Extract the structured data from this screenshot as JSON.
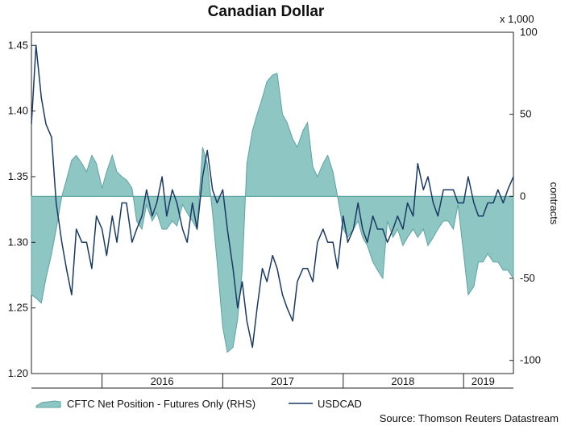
{
  "chart_data": {
    "type": "line",
    "title": "Canadian Dollar",
    "units_note": "x 1,000",
    "y2label": "contracts",
    "source": "Source: Thomson Reuters Datastream",
    "x_ticks": [
      "2016",
      "2017",
      "2018",
      "2019"
    ],
    "x_tick_dates": [
      "2016-07-01",
      "2017-07-01",
      "2018-07-01",
      "2019-03-01"
    ],
    "x_dividers": [
      "2016-01-01",
      "2017-01-01",
      "2018-01-01",
      "2019-01-01"
    ],
    "xlim": [
      "2015-06-01",
      "2019-06-01"
    ],
    "ylim_left": [
      1.2,
      1.46
    ],
    "yticks_left": [
      "1.20",
      "1.25",
      "1.30",
      "1.35",
      "1.40",
      "1.45"
    ],
    "ylim_right": [
      -108,
      100
    ],
    "yticks_right": [
      "-100",
      "-50",
      "0",
      "50",
      "100"
    ],
    "legend": [
      "CFTC Net Position - Futures Only (RHS)",
      "USDCAD"
    ],
    "colors": {
      "area": "#8ec6c4",
      "area_edge": "#5ea3a1",
      "line": "#1a3a64"
    },
    "series": [
      {
        "name": "CFTC Net Position - Futures Only (RHS)",
        "axis": "right",
        "style": "area",
        "x": [
          "2015-06-01",
          "2015-06-15",
          "2015-07-01",
          "2015-07-15",
          "2015-08-01",
          "2015-08-15",
          "2015-09-01",
          "2015-09-15",
          "2015-10-01",
          "2015-10-15",
          "2015-11-01",
          "2015-11-15",
          "2015-12-01",
          "2015-12-15",
          "2016-01-01",
          "2016-01-15",
          "2016-02-01",
          "2016-02-15",
          "2016-03-01",
          "2016-03-15",
          "2016-04-01",
          "2016-04-15",
          "2016-05-01",
          "2016-05-15",
          "2016-06-01",
          "2016-06-15",
          "2016-07-01",
          "2016-07-15",
          "2016-08-01",
          "2016-08-15",
          "2016-09-01",
          "2016-09-15",
          "2016-10-01",
          "2016-10-15",
          "2016-11-01",
          "2016-11-15",
          "2016-12-01",
          "2016-12-15",
          "2017-01-01",
          "2017-01-15",
          "2017-02-01",
          "2017-02-15",
          "2017-03-01",
          "2017-03-15",
          "2017-04-01",
          "2017-04-15",
          "2017-05-01",
          "2017-05-15",
          "2017-06-01",
          "2017-06-15",
          "2017-07-01",
          "2017-07-15",
          "2017-08-01",
          "2017-08-15",
          "2017-09-01",
          "2017-09-15",
          "2017-10-01",
          "2017-10-15",
          "2017-11-01",
          "2017-11-15",
          "2017-12-01",
          "2017-12-15",
          "2018-01-01",
          "2018-01-15",
          "2018-02-01",
          "2018-02-15",
          "2018-03-01",
          "2018-03-15",
          "2018-04-01",
          "2018-04-15",
          "2018-05-01",
          "2018-05-15",
          "2018-06-01",
          "2018-06-15",
          "2018-07-01",
          "2018-07-15",
          "2018-08-01",
          "2018-08-15",
          "2018-09-01",
          "2018-09-15",
          "2018-10-01",
          "2018-10-15",
          "2018-11-01",
          "2018-11-15",
          "2018-12-01",
          "2018-12-15",
          "2019-01-01",
          "2019-01-15",
          "2019-02-01",
          "2019-02-15",
          "2019-03-01",
          "2019-03-15",
          "2019-04-01",
          "2019-04-15",
          "2019-05-01",
          "2019-05-15",
          "2019-06-01"
        ],
        "values": [
          -60,
          -62,
          -65,
          -50,
          -35,
          -20,
          0,
          10,
          22,
          25,
          20,
          15,
          25,
          20,
          5,
          15,
          25,
          15,
          12,
          10,
          5,
          -15,
          -20,
          -5,
          -15,
          -10,
          -20,
          -20,
          -15,
          -18,
          -5,
          -10,
          -15,
          -20,
          30,
          20,
          -10,
          -40,
          -80,
          -95,
          -92,
          -75,
          -45,
          20,
          40,
          50,
          60,
          70,
          74,
          75,
          50,
          45,
          35,
          30,
          40,
          45,
          18,
          12,
          20,
          25,
          15,
          0,
          -20,
          -25,
          -20,
          -15,
          -25,
          -30,
          -40,
          -45,
          -50,
          -15,
          -25,
          -20,
          -30,
          -25,
          -20,
          -25,
          -20,
          -30,
          -25,
          -20,
          -15,
          -15,
          -20,
          -5,
          -35,
          -60,
          -55,
          -40,
          -40,
          -35,
          -40,
          -40,
          -45,
          -45,
          -50
        ]
      },
      {
        "name": "USDCAD",
        "axis": "left",
        "style": "line",
        "x": [
          "2015-06-01",
          "2015-06-15",
          "2015-07-01",
          "2015-07-15",
          "2015-08-01",
          "2015-08-15",
          "2015-09-01",
          "2015-09-15",
          "2015-10-01",
          "2015-10-15",
          "2015-11-01",
          "2015-11-15",
          "2015-12-01",
          "2015-12-15",
          "2016-01-01",
          "2016-01-15",
          "2016-02-01",
          "2016-02-15",
          "2016-03-01",
          "2016-03-15",
          "2016-04-01",
          "2016-04-15",
          "2016-05-01",
          "2016-05-15",
          "2016-06-01",
          "2016-06-15",
          "2016-07-01",
          "2016-07-15",
          "2016-08-01",
          "2016-08-15",
          "2016-09-01",
          "2016-09-15",
          "2016-10-01",
          "2016-10-15",
          "2016-11-01",
          "2016-11-15",
          "2016-12-01",
          "2016-12-15",
          "2017-01-01",
          "2017-01-15",
          "2017-02-01",
          "2017-02-15",
          "2017-03-01",
          "2017-03-15",
          "2017-04-01",
          "2017-04-15",
          "2017-05-01",
          "2017-05-15",
          "2017-06-01",
          "2017-06-15",
          "2017-07-01",
          "2017-07-15",
          "2017-08-01",
          "2017-08-15",
          "2017-09-01",
          "2017-09-15",
          "2017-10-01",
          "2017-10-15",
          "2017-11-01",
          "2017-11-15",
          "2017-12-01",
          "2017-12-15",
          "2018-01-01",
          "2018-01-15",
          "2018-02-01",
          "2018-02-15",
          "2018-03-01",
          "2018-03-15",
          "2018-04-01",
          "2018-04-15",
          "2018-05-01",
          "2018-05-15",
          "2018-06-01",
          "2018-06-15",
          "2018-07-01",
          "2018-07-15",
          "2018-08-01",
          "2018-08-15",
          "2018-09-01",
          "2018-09-15",
          "2018-10-01",
          "2018-10-15",
          "2018-11-01",
          "2018-11-15",
          "2018-12-01",
          "2018-12-15",
          "2019-01-01",
          "2019-01-15",
          "2019-02-01",
          "2019-02-15",
          "2019-03-01",
          "2019-03-15",
          "2019-04-01",
          "2019-04-15",
          "2019-05-01",
          "2019-05-15",
          "2019-06-01"
        ],
        "values": [
          1.39,
          1.45,
          1.41,
          1.39,
          1.38,
          1.33,
          1.3,
          1.28,
          1.26,
          1.31,
          1.3,
          1.3,
          1.28,
          1.32,
          1.31,
          1.29,
          1.32,
          1.3,
          1.33,
          1.33,
          1.3,
          1.31,
          1.32,
          1.34,
          1.32,
          1.33,
          1.35,
          1.32,
          1.34,
          1.33,
          1.31,
          1.3,
          1.33,
          1.31,
          1.35,
          1.37,
          1.34,
          1.33,
          1.34,
          1.31,
          1.28,
          1.25,
          1.27,
          1.24,
          1.22,
          1.25,
          1.28,
          1.27,
          1.29,
          1.28,
          1.26,
          1.25,
          1.24,
          1.27,
          1.28,
          1.28,
          1.27,
          1.3,
          1.31,
          1.3,
          1.3,
          1.28,
          1.32,
          1.3,
          1.31,
          1.33,
          1.31,
          1.3,
          1.32,
          1.31,
          1.31,
          1.3,
          1.31,
          1.32,
          1.31,
          1.33,
          1.32,
          1.36,
          1.34,
          1.35,
          1.33,
          1.32,
          1.34,
          1.34,
          1.34,
          1.33,
          1.33,
          1.35,
          1.33,
          1.32,
          1.32,
          1.33,
          1.33,
          1.34,
          1.33,
          1.34,
          1.35
        ]
      }
    ]
  }
}
